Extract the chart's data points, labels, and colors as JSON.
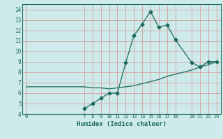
{
  "xlabel": "Humidex (Indice chaleur)",
  "ylabel": "",
  "bg_color": "#ceeaea",
  "grid_color": "#d4a0a0",
  "line_color": "#1a6b5a",
  "xlim": [
    -0.5,
    23.5
  ],
  "ylim": [
    4,
    14.5
  ],
  "xticks": [
    0,
    7,
    8,
    9,
    10,
    11,
    12,
    13,
    14,
    15,
    16,
    17,
    18,
    20,
    21,
    22,
    23
  ],
  "yticks": [
    4,
    5,
    6,
    7,
    8,
    9,
    10,
    11,
    12,
    13,
    14
  ],
  "curve_x": [
    7,
    8,
    9,
    10,
    11,
    12,
    13,
    14,
    15,
    16,
    17,
    18,
    20,
    21,
    22,
    23
  ],
  "curve_y": [
    4.5,
    5.0,
    5.5,
    6.0,
    6.0,
    8.9,
    11.5,
    12.6,
    13.8,
    12.3,
    12.5,
    11.1,
    8.9,
    8.5,
    9.0,
    9.0
  ],
  "ref_x": [
    0,
    7,
    8,
    9,
    10,
    11,
    12,
    13,
    14,
    15,
    16,
    17,
    18,
    20,
    21,
    22,
    23
  ],
  "ref_y": [
    6.6,
    6.6,
    6.5,
    6.5,
    6.4,
    6.5,
    6.6,
    6.7,
    6.9,
    7.1,
    7.3,
    7.6,
    7.8,
    8.2,
    8.5,
    8.7,
    9.0
  ]
}
